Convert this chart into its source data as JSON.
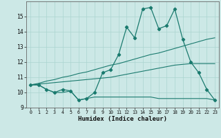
{
  "xlabel": "Humidex (Indice chaleur)",
  "background_color": "#cce8e6",
  "grid_color": "#aad4d0",
  "line_color": "#1a7a6e",
  "x_values": [
    0,
    1,
    2,
    3,
    4,
    5,
    6,
    7,
    8,
    9,
    10,
    11,
    12,
    13,
    14,
    15,
    16,
    17,
    18,
    19,
    20,
    21,
    22,
    23
  ],
  "series_main": [
    10.5,
    10.5,
    10.2,
    10.0,
    10.2,
    10.1,
    9.5,
    9.6,
    10.0,
    11.3,
    11.5,
    12.5,
    14.3,
    13.6,
    15.5,
    15.6,
    14.2,
    14.4,
    15.5,
    13.5,
    12.0,
    11.3,
    10.2,
    9.5
  ],
  "series_trend1": [
    10.5,
    10.6,
    10.75,
    10.85,
    11.0,
    11.1,
    11.25,
    11.35,
    11.5,
    11.65,
    11.8,
    11.9,
    12.05,
    12.2,
    12.35,
    12.5,
    12.6,
    12.75,
    12.9,
    13.05,
    13.2,
    13.35,
    13.5,
    13.6
  ],
  "series_trend2": [
    10.5,
    10.55,
    10.6,
    10.65,
    10.7,
    10.75,
    10.8,
    10.85,
    10.9,
    10.95,
    11.0,
    11.1,
    11.2,
    11.3,
    11.4,
    11.5,
    11.6,
    11.7,
    11.8,
    11.85,
    11.9,
    11.9,
    11.9,
    11.9
  ],
  "series_low": [
    10.5,
    10.5,
    10.2,
    10.0,
    10.0,
    10.1,
    9.5,
    9.6,
    9.7,
    9.7,
    9.7,
    9.7,
    9.7,
    9.7,
    9.7,
    9.7,
    9.6,
    9.6,
    9.6,
    9.6,
    9.6,
    9.6,
    9.6,
    9.5
  ],
  "ylim": [
    9.0,
    16.0
  ],
  "xlim": [
    -0.5,
    23.5
  ],
  "yticks": [
    9,
    10,
    11,
    12,
    13,
    14,
    15
  ],
  "xticks": [
    0,
    1,
    2,
    3,
    4,
    5,
    6,
    7,
    8,
    9,
    10,
    11,
    12,
    13,
    14,
    15,
    16,
    17,
    18,
    19,
    20,
    21,
    22,
    23
  ]
}
